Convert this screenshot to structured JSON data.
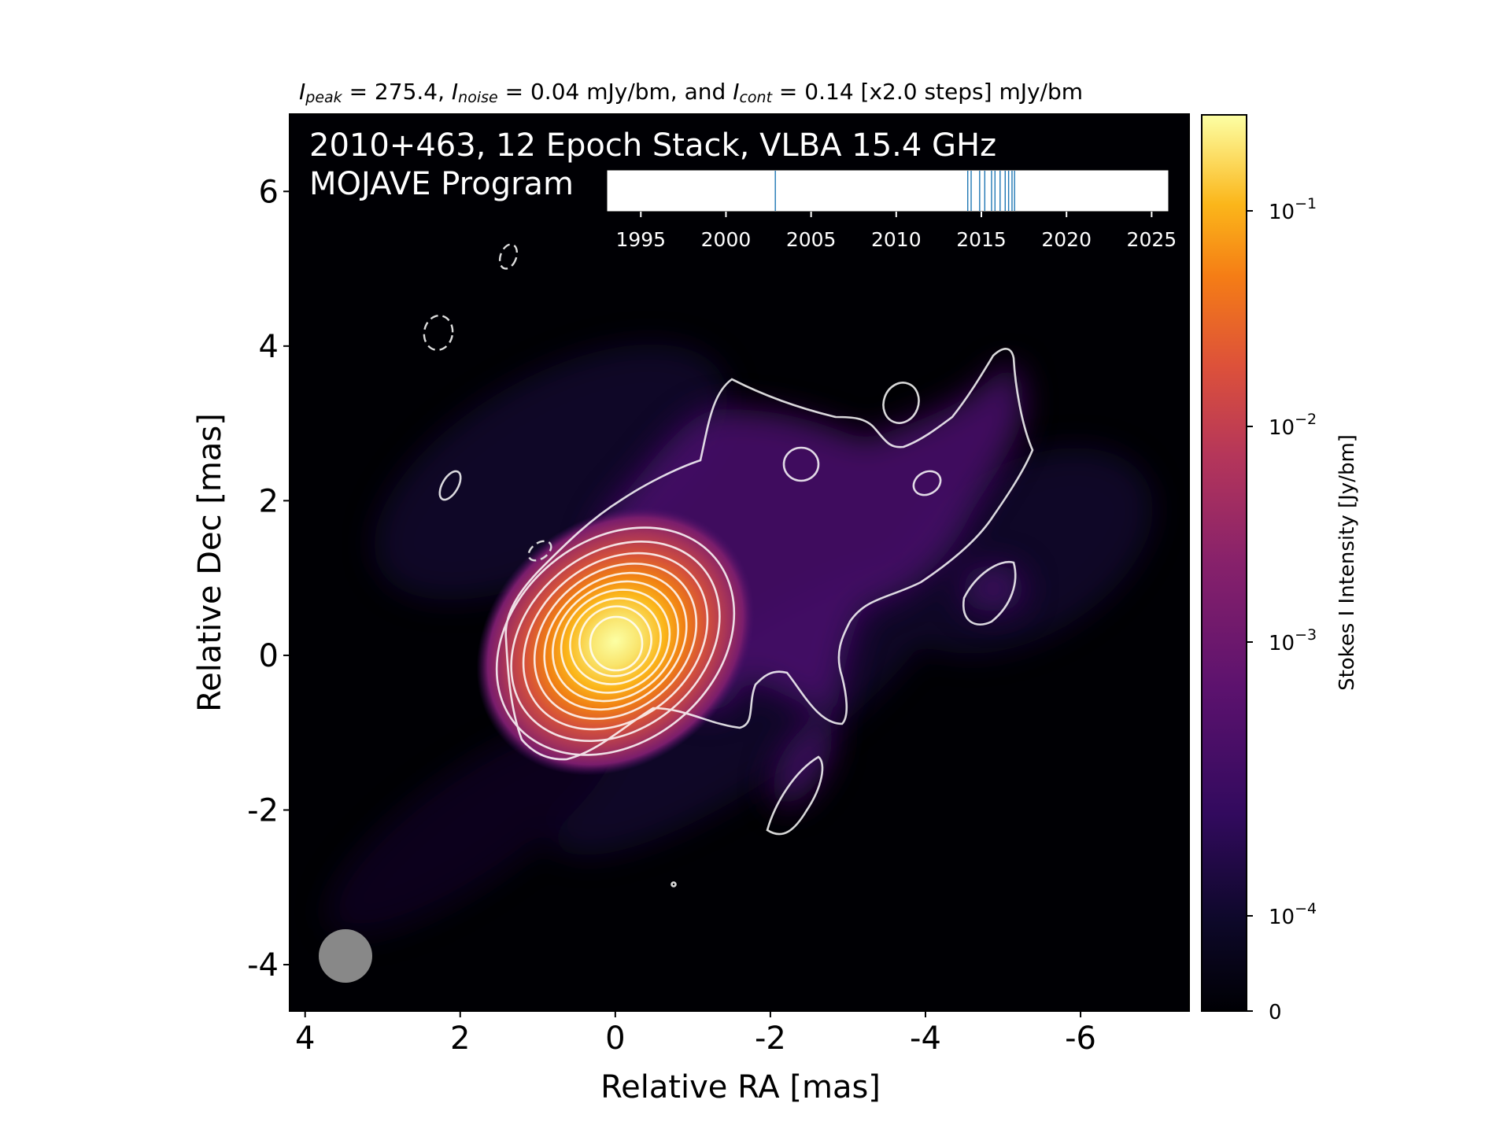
{
  "header": {
    "peak_var": "I",
    "peak_sub": "peak",
    "peak_text": " = 275.4, ",
    "noise_var": "I",
    "noise_sub": "noise",
    "noise_text": " = 0.04 mJy/bm, and ",
    "cont_var": "I",
    "cont_sub": "cont",
    "cont_text": " = 0.14 [x2.0 steps] mJy/bm"
  },
  "overlay": {
    "line1": "2010+463, 12 Epoch Stack, VLBA 15.4 GHz",
    "line2": "MOJAVE Program"
  },
  "chart_data": [
    {
      "type": "heatmap",
      "xlabel": "Relative RA [mas]",
      "ylabel": "Relative Dec [mas]",
      "xlim": [
        4.2,
        -7.4
      ],
      "ylim": [
        -4.6,
        7.0
      ],
      "xticks": [
        4,
        2,
        0,
        -2,
        -4,
        -6
      ],
      "xtick_labels": [
        "4",
        "2",
        "0",
        "-2",
        "-4",
        "-6"
      ],
      "yticks": [
        6,
        4,
        2,
        0,
        -2,
        -4
      ],
      "ytick_labels": [
        "6",
        "4",
        "2",
        "0",
        "-2",
        "-4"
      ],
      "colormap": "inferno",
      "contour_color": "#ffffff",
      "peak_position_mas": [
        0,
        0
      ],
      "beam_color": "#888888",
      "colorbar": {
        "label": "Stokes I Intensity [Jy/bm]",
        "scale": "symlog",
        "tick_values": [
          0.1,
          0.01,
          0.001,
          0.0001,
          0
        ],
        "tick_labels": [
          {
            "base": "10",
            "exp": "−1"
          },
          {
            "base": "10",
            "exp": "−2"
          },
          {
            "base": "10",
            "exp": "−3"
          },
          {
            "base": "10",
            "exp": "−4"
          },
          {
            "base": "0",
            "exp": ""
          }
        ]
      }
    },
    {
      "type": "scatter",
      "title": "",
      "xlim": [
        1993,
        2026
      ],
      "xticks": [
        1995,
        2000,
        2005,
        2010,
        2015,
        2020,
        2025
      ],
      "xtick_labels": [
        "1995",
        "2000",
        "2005",
        "2010",
        "2015",
        "2020",
        "2025"
      ],
      "epochs": [
        2002.9,
        2014.2,
        2014.4,
        2014.9,
        2015.2,
        2015.6,
        2015.8,
        2016.1,
        2016.4,
        2016.6,
        2016.8,
        2016.95
      ],
      "line_color": "#1f77b4"
    }
  ]
}
